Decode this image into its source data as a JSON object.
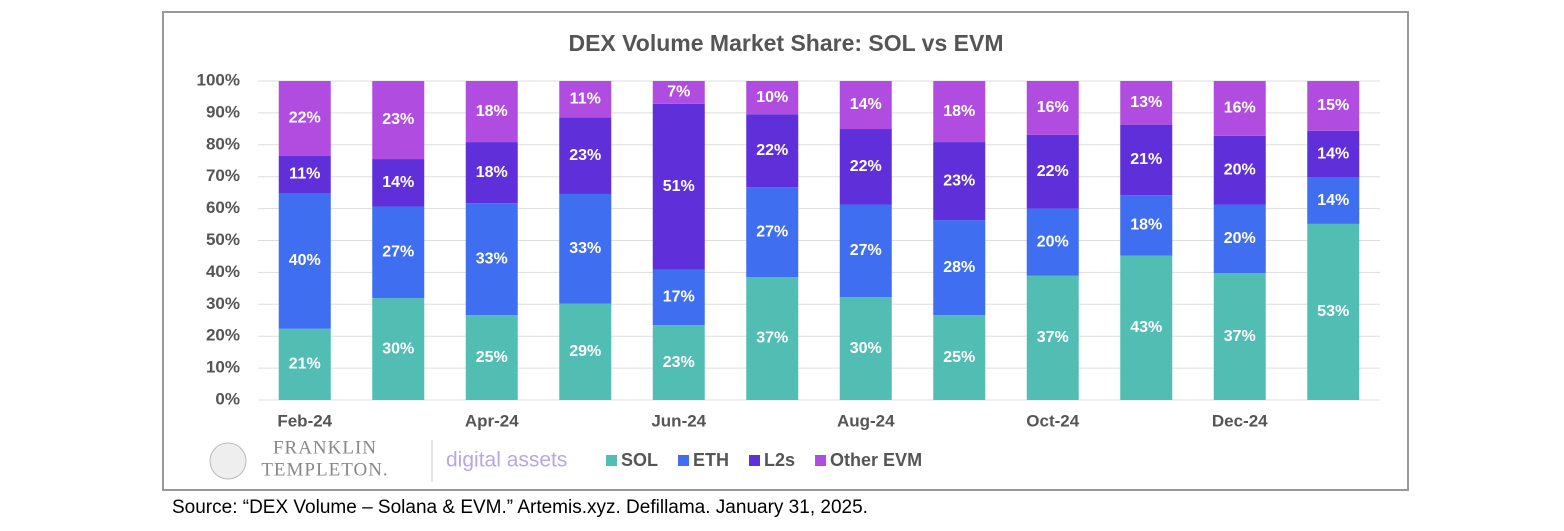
{
  "chart_data": {
    "type": "bar",
    "stacked": "percent",
    "title": "DEX Volume Market Share: SOL vs EVM",
    "categories": [
      "Feb-24",
      null,
      "Apr-24",
      null,
      "Jun-24",
      null,
      "Aug-24",
      null,
      "Oct-24",
      null,
      "Dec-24",
      null
    ],
    "series": [
      {
        "name": "SOL",
        "color": "#52bdb3",
        "values": [
          21,
          30,
          25,
          29,
          23,
          37,
          30,
          25,
          37,
          43,
          37,
          53
        ],
        "value_labels": [
          "21%",
          "30%",
          "25%",
          "29%",
          "23%",
          "37%",
          "30%",
          "25%",
          "37%",
          "43%",
          "37%",
          "53%"
        ]
      },
      {
        "name": "ETH",
        "color": "#3f6ef0",
        "values": [
          40,
          27,
          33,
          33,
          17,
          27,
          27,
          28,
          20,
          18,
          20,
          14
        ],
        "value_labels": [
          "40%",
          "27%",
          "33%",
          "33%",
          "17%",
          "27%",
          "27%",
          "28%",
          "20%",
          "18%",
          "20%",
          "14%"
        ]
      },
      {
        "name": "L2s",
        "color": "#5f2fd9",
        "values": [
          11,
          14,
          18,
          23,
          51,
          22,
          22,
          23,
          22,
          21,
          20,
          14
        ],
        "value_labels": [
          "11%",
          "14%",
          "18%",
          "23%",
          "51%",
          "22%",
          "22%",
          "23%",
          "22%",
          "21%",
          "20%",
          "14%"
        ]
      },
      {
        "name": "Other EVM",
        "color": "#b04de0",
        "values": [
          22,
          23,
          18,
          11,
          7,
          10,
          14,
          18,
          16,
          13,
          16,
          15
        ],
        "value_labels": [
          "22%",
          "23%",
          "18%",
          "11%",
          "7%",
          "10%",
          "14%",
          "18%",
          "16%",
          "13%",
          "16%",
          "15%"
        ]
      }
    ],
    "ylim": [
      0,
      100
    ],
    "yticks": [
      {
        "value": 0,
        "label": "0%"
      },
      {
        "value": 10,
        "label": "10%"
      },
      {
        "value": 20,
        "label": "20%"
      },
      {
        "value": 30,
        "label": "30%"
      },
      {
        "value": 40,
        "label": "40%"
      },
      {
        "value": 50,
        "label": "50%"
      },
      {
        "value": 60,
        "label": "60%"
      },
      {
        "value": 70,
        "label": "70%"
      },
      {
        "value": 80,
        "label": "80%"
      },
      {
        "value": 90,
        "label": "90%"
      },
      {
        "value": 100,
        "label": "100%"
      }
    ],
    "grid": true,
    "legend": "bottom"
  },
  "branding": {
    "company_line1": "FRANKLIN",
    "company_line2": "TEMPLETON.",
    "unit": "digital assets"
  },
  "source": "Source: “DEX Volume – Solana & EVM.” Artemis.xyz. Defillama. January 31, 2025."
}
